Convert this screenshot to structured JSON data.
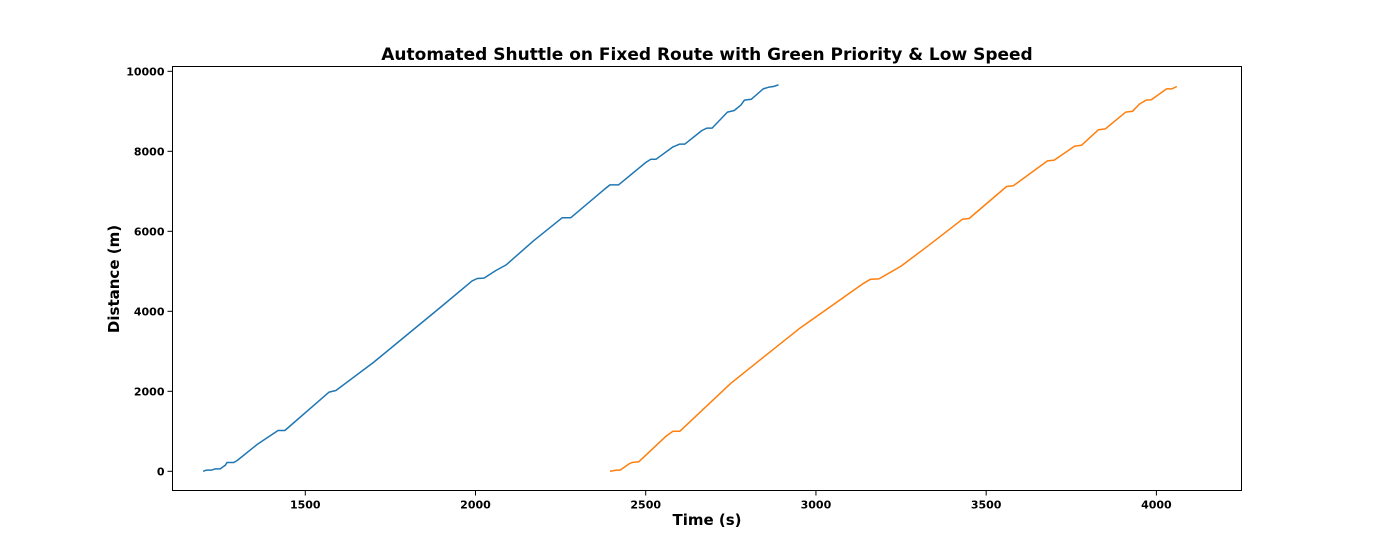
{
  "chart_data": {
    "type": "line",
    "title": "Automated Shuttle on Fixed Route with Green Priority & Low Speed",
    "xlabel": "Time (s)",
    "ylabel": "Distance (m)",
    "xlim": [
      1110,
      4250
    ],
    "ylim": [
      -480,
      10120
    ],
    "grid": false,
    "x_ticks": [
      1500,
      2000,
      2500,
      3000,
      3500,
      4000
    ],
    "x_tick_labels": [
      "1500",
      "2000",
      "2500",
      "3000",
      "3500",
      "4000"
    ],
    "y_ticks": [
      0,
      2000,
      4000,
      6000,
      8000,
      10000
    ],
    "y_tick_labels": [
      "0",
      "2000",
      "4000",
      "6000",
      "8000",
      "10000"
    ],
    "series": [
      {
        "color": "#1f77b4",
        "points": [
          [
            1200,
            0
          ],
          [
            1210,
            30
          ],
          [
            1225,
            30
          ],
          [
            1235,
            60
          ],
          [
            1250,
            60
          ],
          [
            1265,
            150
          ],
          [
            1270,
            220
          ],
          [
            1290,
            220
          ],
          [
            1300,
            270
          ],
          [
            1360,
            680
          ],
          [
            1420,
            1020
          ],
          [
            1440,
            1020
          ],
          [
            1570,
            1980
          ],
          [
            1590,
            2020
          ],
          [
            1700,
            2720
          ],
          [
            1800,
            3420
          ],
          [
            1900,
            4120
          ],
          [
            1990,
            4760
          ],
          [
            2005,
            4820
          ],
          [
            2025,
            4830
          ],
          [
            2060,
            5020
          ],
          [
            2090,
            5160
          ],
          [
            2170,
            5760
          ],
          [
            2255,
            6340
          ],
          [
            2280,
            6340
          ],
          [
            2380,
            7060
          ],
          [
            2395,
            7160
          ],
          [
            2420,
            7160
          ],
          [
            2500,
            7720
          ],
          [
            2515,
            7800
          ],
          [
            2530,
            7800
          ],
          [
            2580,
            8110
          ],
          [
            2600,
            8180
          ],
          [
            2615,
            8180
          ],
          [
            2665,
            8520
          ],
          [
            2680,
            8580
          ],
          [
            2695,
            8580
          ],
          [
            2740,
            8980
          ],
          [
            2760,
            9020
          ],
          [
            2780,
            9160
          ],
          [
            2790,
            9280
          ],
          [
            2810,
            9300
          ],
          [
            2845,
            9560
          ],
          [
            2860,
            9600
          ],
          [
            2875,
            9620
          ],
          [
            2890,
            9660
          ]
        ]
      },
      {
        "color": "#ff7f0e",
        "points": [
          [
            2395,
            0
          ],
          [
            2415,
            30
          ],
          [
            2425,
            30
          ],
          [
            2450,
            180
          ],
          [
            2460,
            220
          ],
          [
            2480,
            240
          ],
          [
            2560,
            880
          ],
          [
            2580,
            1000
          ],
          [
            2600,
            1000
          ],
          [
            2650,
            1400
          ],
          [
            2750,
            2200
          ],
          [
            2850,
            2880
          ],
          [
            2950,
            3560
          ],
          [
            3050,
            4160
          ],
          [
            3140,
            4700
          ],
          [
            3160,
            4800
          ],
          [
            3185,
            4810
          ],
          [
            3250,
            5130
          ],
          [
            3330,
            5640
          ],
          [
            3430,
            6300
          ],
          [
            3450,
            6320
          ],
          [
            3560,
            7120
          ],
          [
            3580,
            7140
          ],
          [
            3680,
            7760
          ],
          [
            3700,
            7780
          ],
          [
            3760,
            8130
          ],
          [
            3780,
            8150
          ],
          [
            3830,
            8540
          ],
          [
            3850,
            8560
          ],
          [
            3910,
            8980
          ],
          [
            3930,
            9000
          ],
          [
            3950,
            9180
          ],
          [
            3970,
            9280
          ],
          [
            3985,
            9290
          ],
          [
            4030,
            9560
          ],
          [
            4045,
            9560
          ],
          [
            4060,
            9620
          ]
        ]
      }
    ]
  }
}
